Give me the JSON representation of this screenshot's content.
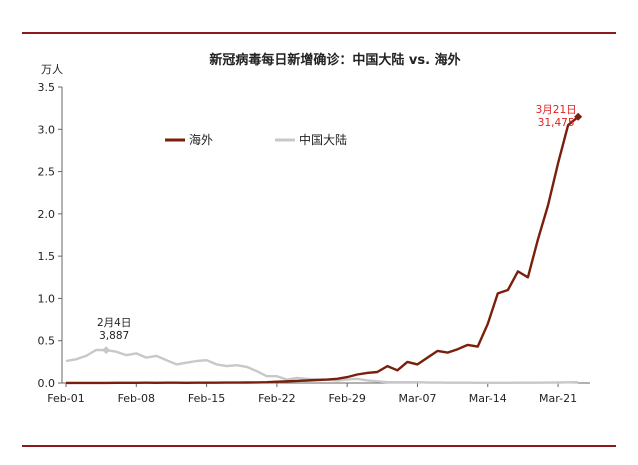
{
  "chart_data": {
    "type": "line",
    "title": "新冠病毒每日新增确诊：中国大陆 vs. 海外",
    "y_unit": "万人",
    "xlabel": "",
    "ylabel": "",
    "ylim": [
      0,
      3.5
    ],
    "yticks": [
      "0.0",
      "0.5",
      "1.0",
      "1.5",
      "2.0",
      "2.5",
      "3.0",
      "3.5"
    ],
    "xlim": [
      0,
      51
    ],
    "xticks": [
      {
        "label": "Feb-01",
        "x": 0
      },
      {
        "label": "Feb-08",
        "x": 7
      },
      {
        "label": "Feb-15",
        "x": 14
      },
      {
        "label": "Feb-22",
        "x": 21
      },
      {
        "label": "Feb-29",
        "x": 28
      },
      {
        "label": "Mar-07",
        "x": 35
      },
      {
        "label": "Mar-14",
        "x": 42
      },
      {
        "label": "Mar-21",
        "x": 49
      }
    ],
    "grid": false,
    "legend_position": "top-left",
    "series": [
      {
        "name": "海外",
        "color": "#7a1f0c",
        "values": [
          0.001,
          0.001,
          0.001,
          0.001,
          0.001,
          0.002,
          0.002,
          0.002,
          0.003,
          0.002,
          0.003,
          0.003,
          0.002,
          0.004,
          0.004,
          0.004,
          0.005,
          0.005,
          0.006,
          0.007,
          0.01,
          0.015,
          0.02,
          0.025,
          0.03,
          0.035,
          0.04,
          0.05,
          0.07,
          0.1,
          0.12,
          0.13,
          0.2,
          0.15,
          0.25,
          0.22,
          0.3,
          0.38,
          0.36,
          0.4,
          0.45,
          0.43,
          0.7,
          1.06,
          1.1,
          1.32,
          1.25,
          1.7,
          2.1,
          2.6,
          3.05,
          3.1475
        ]
      },
      {
        "name": "中国大陆",
        "color": "#c8c8c8",
        "values": [
          0.26,
          0.28,
          0.32,
          0.39,
          0.3887,
          0.37,
          0.33,
          0.35,
          0.3,
          0.32,
          0.27,
          0.22,
          0.24,
          0.26,
          0.27,
          0.22,
          0.2,
          0.21,
          0.19,
          0.14,
          0.08,
          0.08,
          0.04,
          0.06,
          0.05,
          0.04,
          0.04,
          0.03,
          0.04,
          0.05,
          0.03,
          0.02,
          0.01,
          0.01,
          0.01,
          0.01,
          0.005,
          0.005,
          0.004,
          0.004,
          0.003,
          0.002,
          0.002,
          0.002,
          0.002,
          0.003,
          0.004,
          0.004,
          0.005,
          0.006,
          0.008,
          0.009
        ]
      }
    ],
    "annotations": [
      {
        "series": "中国大陆",
        "x": 4,
        "y": 0.3887,
        "line1": "2月4日",
        "line2": "3,887",
        "color": "#222222"
      },
      {
        "series": "海外",
        "x": 51,
        "y": 3.1475,
        "line1": "3月21日",
        "line2": "31,475",
        "color": "#e02020"
      }
    ]
  }
}
